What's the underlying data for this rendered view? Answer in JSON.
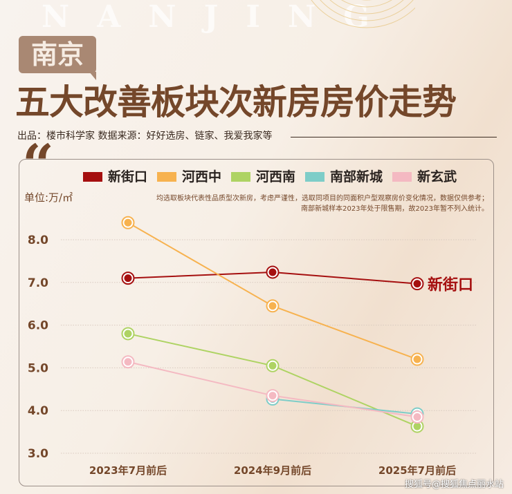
{
  "watermark_bg": "NANJING",
  "badge": "南京",
  "title": "五大改善板块次新房房价走势",
  "credit": "出品：楼市科学家 数据来源：好好选房、链家、我爱我家等",
  "unit": "单位:万/㎡",
  "note_line1": "均选取板块代表性品质型次新房，考虑严谨性，选取同项目的同面积户型观察房价变化情况，数据仅供参考；",
  "note_line2": "南部新城样本2023年处于限售期，故2023年暂不列入统计。",
  "footer": "搜狐号@搜狐焦点丽水站",
  "chart_data": {
    "type": "line",
    "title": "五大改善板块次新房房价走势",
    "ylabel": "单位:万/㎡",
    "categories": [
      "2023年7月前后",
      "2024年9月前后",
      "2025年7月前后"
    ],
    "ylim": [
      3.0,
      8.0
    ],
    "yticks": [
      "3.0",
      "4.0",
      "5.0",
      "6.0",
      "7.0",
      "8.0"
    ],
    "grid": true,
    "legend_position": "top",
    "annotation": "新街口",
    "series": [
      {
        "name": "新街口",
        "color": "#a50f0f",
        "values": [
          7.1,
          7.24,
          6.97
        ]
      },
      {
        "name": "河西中",
        "color": "#f7b24f",
        "values": [
          8.4,
          6.45,
          5.2
        ]
      },
      {
        "name": "河西南",
        "color": "#aed363",
        "values": [
          5.8,
          5.05,
          3.63
        ]
      },
      {
        "name": "南部新城",
        "color": "#7ecdc8",
        "values": [
          null,
          4.27,
          3.92
        ]
      },
      {
        "name": "新玄武",
        "color": "#f4b9c2",
        "values": [
          5.14,
          4.35,
          3.85
        ]
      }
    ]
  }
}
